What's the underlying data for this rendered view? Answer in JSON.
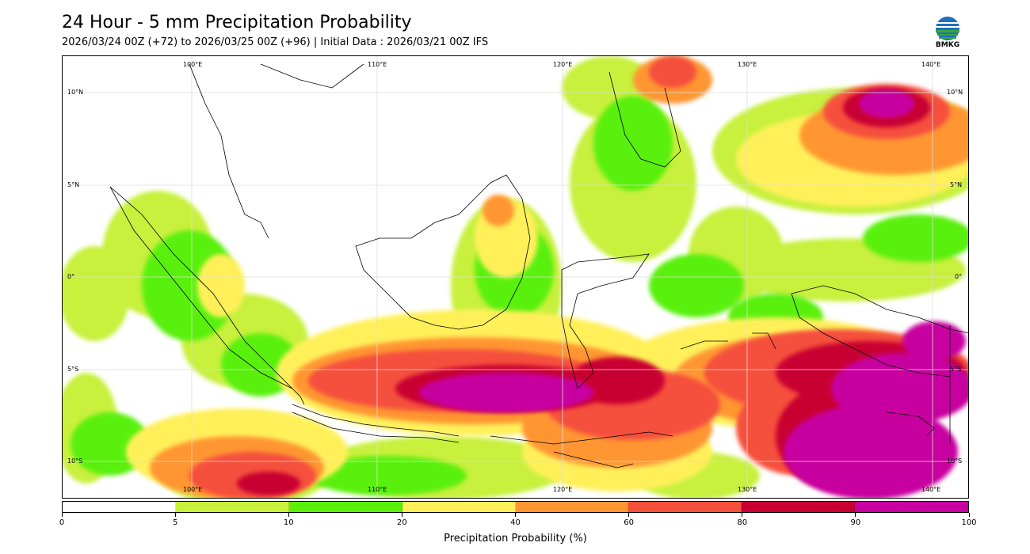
{
  "title": "24 Hour - 5 mm Precipitation Probability",
  "subtitle": "2026/03/24 00Z (+72) to 2026/03/25 00Z (+96) | Initial Data : 2026/03/21 00Z IFS",
  "logo": {
    "text": "BMKG",
    "icon": "bmkg-logo-icon"
  },
  "map": {
    "top_lon_labels": [
      "100°E",
      "110°E",
      "120°E",
      "130°E",
      "140°E"
    ],
    "bottom_lon_labels": [
      "100°E",
      "110°E",
      "120°E",
      "130°E",
      "140°E"
    ],
    "left_lat_labels": [
      "10°N",
      "5°N",
      "0°",
      "5°S",
      "10°S"
    ],
    "right_lat_labels": [
      "10°N",
      "5°N",
      "0°",
      "5°S",
      "10°S"
    ]
  },
  "colorbar": {
    "label": "Precipitation Probability (%)",
    "ticks": [
      "0",
      "5",
      "10",
      "20",
      "40",
      "60",
      "80",
      "90",
      "100"
    ],
    "colors": [
      "#ffffff",
      "#c8f03c",
      "#5af00a",
      "#fff05a",
      "#ff9632",
      "#f5503c",
      "#c80032",
      "#c800a0"
    ]
  }
}
